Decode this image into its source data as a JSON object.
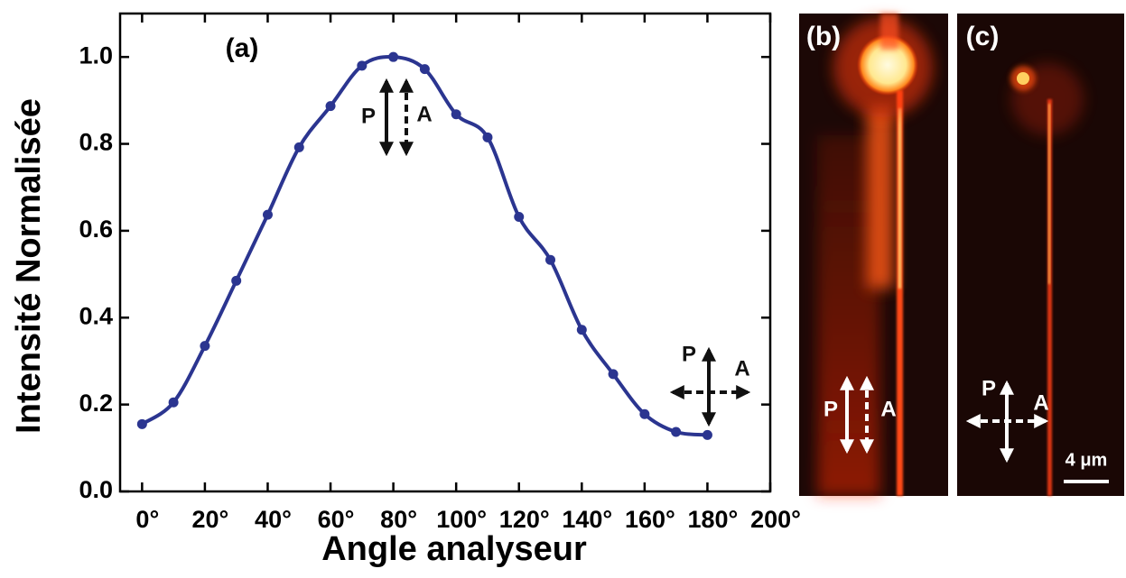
{
  "chart_data": {
    "type": "line",
    "x_label": "Angle analyseur",
    "y_label": "Intensité Normalisée",
    "x": [
      0,
      10,
      20,
      30,
      40,
      50,
      60,
      70,
      80,
      90,
      100,
      110,
      120,
      130,
      140,
      150,
      160,
      170,
      180
    ],
    "values": [
      0.155,
      0.205,
      0.335,
      0.485,
      0.637,
      0.792,
      0.887,
      0.98,
      1.0,
      0.972,
      0.868,
      0.815,
      0.632,
      0.533,
      0.372,
      0.27,
      0.178,
      0.137,
      0.13
    ],
    "color": "#2b3590",
    "xlim": [
      -7,
      200
    ],
    "ylim": [
      0,
      1.1
    ],
    "xticks": [
      {
        "value": 0,
        "label": "0°"
      },
      {
        "value": 20,
        "label": "20°"
      },
      {
        "value": 40,
        "label": "40°"
      },
      {
        "value": 60,
        "label": "60°"
      },
      {
        "value": 80,
        "label": "80°"
      },
      {
        "value": 100,
        "label": "100°"
      },
      {
        "value": 120,
        "label": "120°"
      },
      {
        "value": 140,
        "label": "140°"
      },
      {
        "value": 160,
        "label": "160°"
      },
      {
        "value": 180,
        "label": "180°"
      },
      {
        "value": 200,
        "label": "200°"
      }
    ],
    "yticks": [
      {
        "value": 0,
        "label": "0.0"
      },
      0.2,
      0.4,
      0.6,
      0.8,
      {
        "value": 1,
        "label": "1.0"
      }
    ],
    "annotations": {
      "panel_a": "(a)",
      "polarizer": "P",
      "analyzer": "A",
      "panel_b": "(b)",
      "panel_c": "(c)",
      "scale_bar": "4 μm"
    }
  }
}
